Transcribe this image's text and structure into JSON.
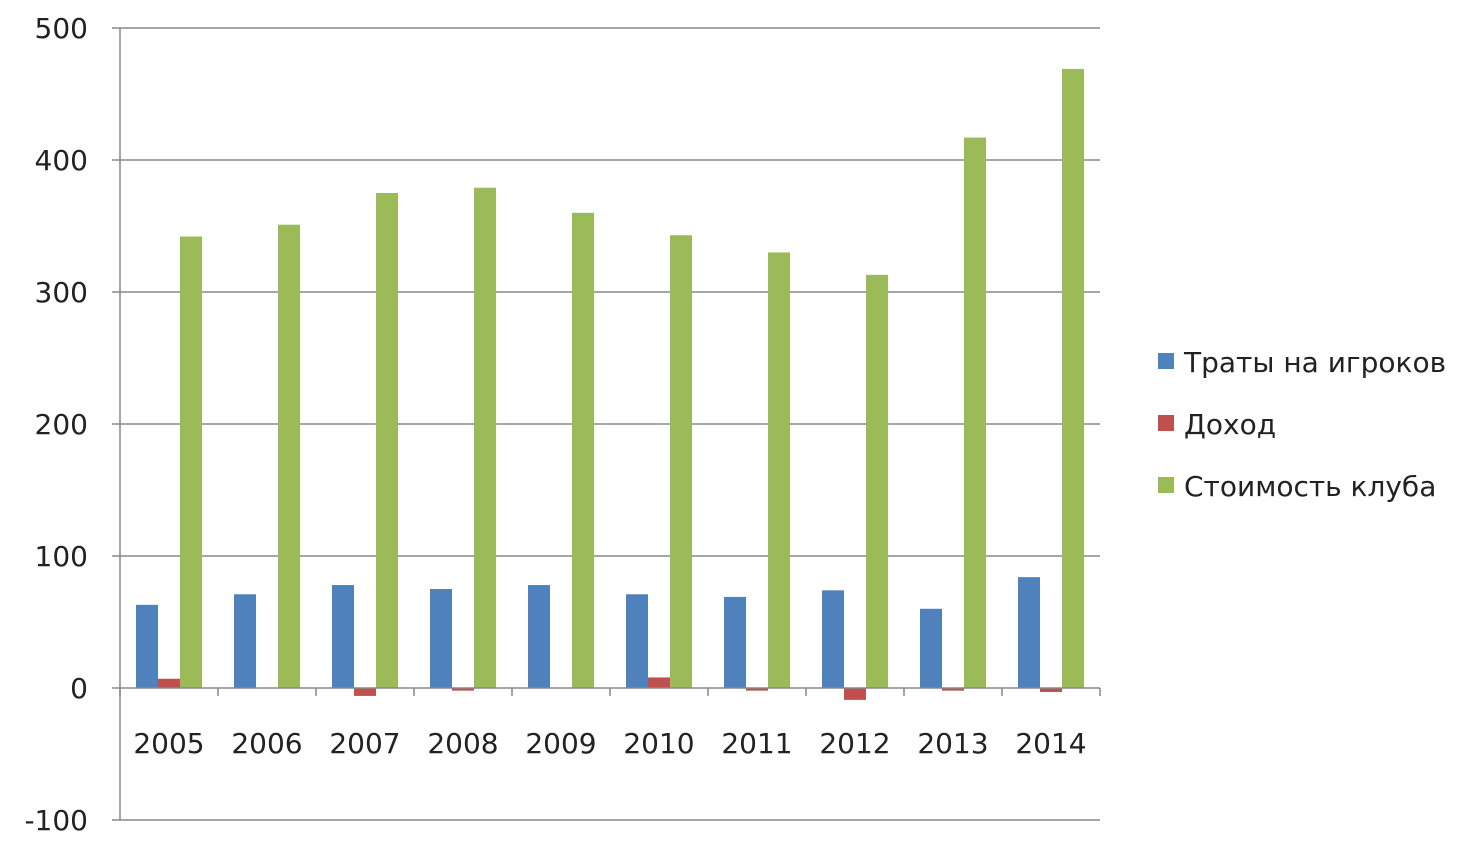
{
  "chart_data": {
    "type": "bar",
    "categories": [
      "2005",
      "2006",
      "2007",
      "2008",
      "2009",
      "2010",
      "2011",
      "2012",
      "2013",
      "2014"
    ],
    "series": [
      {
        "name": "Траты на игроков",
        "color": "#4F81BD",
        "values": [
          63,
          71,
          78,
          75,
          78,
          71,
          69,
          74,
          60,
          84
        ]
      },
      {
        "name": "Доход",
        "color": "#C0504D",
        "values": [
          7,
          0,
          -6,
          -2,
          0,
          8,
          -2,
          -9,
          -2,
          -3
        ]
      },
      {
        "name": "Стоимость клуба",
        "color": "#9BBB59",
        "values": [
          342,
          351,
          375,
          379,
          360,
          343,
          330,
          313,
          417,
          469
        ]
      }
    ],
    "ylim": [
      -100,
      500
    ],
    "yticks": [
      -100,
      0,
      100,
      200,
      300,
      400,
      500
    ],
    "ytick_labels": [
      "-100",
      "0",
      "100",
      "200",
      "300",
      "400",
      "500"
    ],
    "grid": true,
    "legend_position": "right",
    "title": "",
    "xlabel": "",
    "ylabel": ""
  }
}
